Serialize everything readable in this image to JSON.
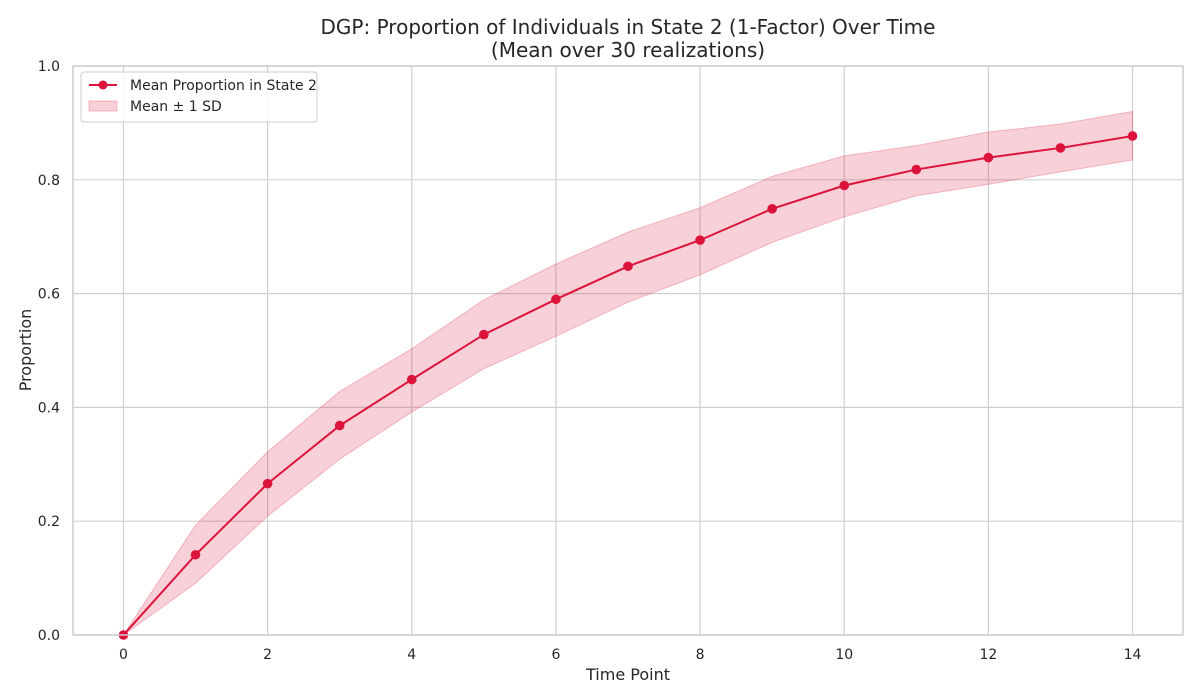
{
  "chart_data": {
    "type": "line",
    "title": [
      "DGP: Proportion of Individuals in State 2 (1-Factor) Over Time",
      "(Mean over 30 realizations)"
    ],
    "xlabel": "Time Point",
    "ylabel": "Proportion",
    "xlim": [
      -0.7,
      14.7
    ],
    "ylim": [
      0.0,
      1.0
    ],
    "xticks": [
      0,
      2,
      4,
      6,
      8,
      10,
      12,
      14
    ],
    "xtick_labels": [
      "0",
      "2",
      "4",
      "6",
      "8",
      "10",
      "12",
      "14"
    ],
    "yticks": [
      0.0,
      0.2,
      0.4,
      0.6,
      0.8,
      1.0
    ],
    "ytick_labels": [
      "0.0",
      "0.2",
      "0.4",
      "0.6",
      "0.8",
      "1.0"
    ],
    "grid": true,
    "legend_position": "top-left",
    "x": [
      0,
      1,
      2,
      3,
      4,
      5,
      6,
      7,
      8,
      9,
      10,
      11,
      12,
      13,
      14
    ],
    "series": [
      {
        "name": "Mean Proportion in State 2",
        "color": "#dc143c",
        "marker": "circle",
        "values": [
          0.0,
          0.141,
          0.266,
          0.368,
          0.449,
          0.528,
          0.59,
          0.648,
          0.694,
          0.749,
          0.79,
          0.818,
          0.839,
          0.856,
          0.877
        ]
      }
    ],
    "band": {
      "name": "Mean ± 1 SD",
      "color": "#dc143c",
      "opacity": 0.2,
      "upper": [
        0.0,
        0.193,
        0.322,
        0.428,
        0.503,
        0.589,
        0.652,
        0.708,
        0.751,
        0.806,
        0.842,
        0.86,
        0.884,
        0.898,
        0.92
      ],
      "lower": [
        0.0,
        0.091,
        0.209,
        0.309,
        0.392,
        0.468,
        0.525,
        0.585,
        0.633,
        0.69,
        0.735,
        0.772,
        0.792,
        0.814,
        0.835
      ]
    }
  }
}
